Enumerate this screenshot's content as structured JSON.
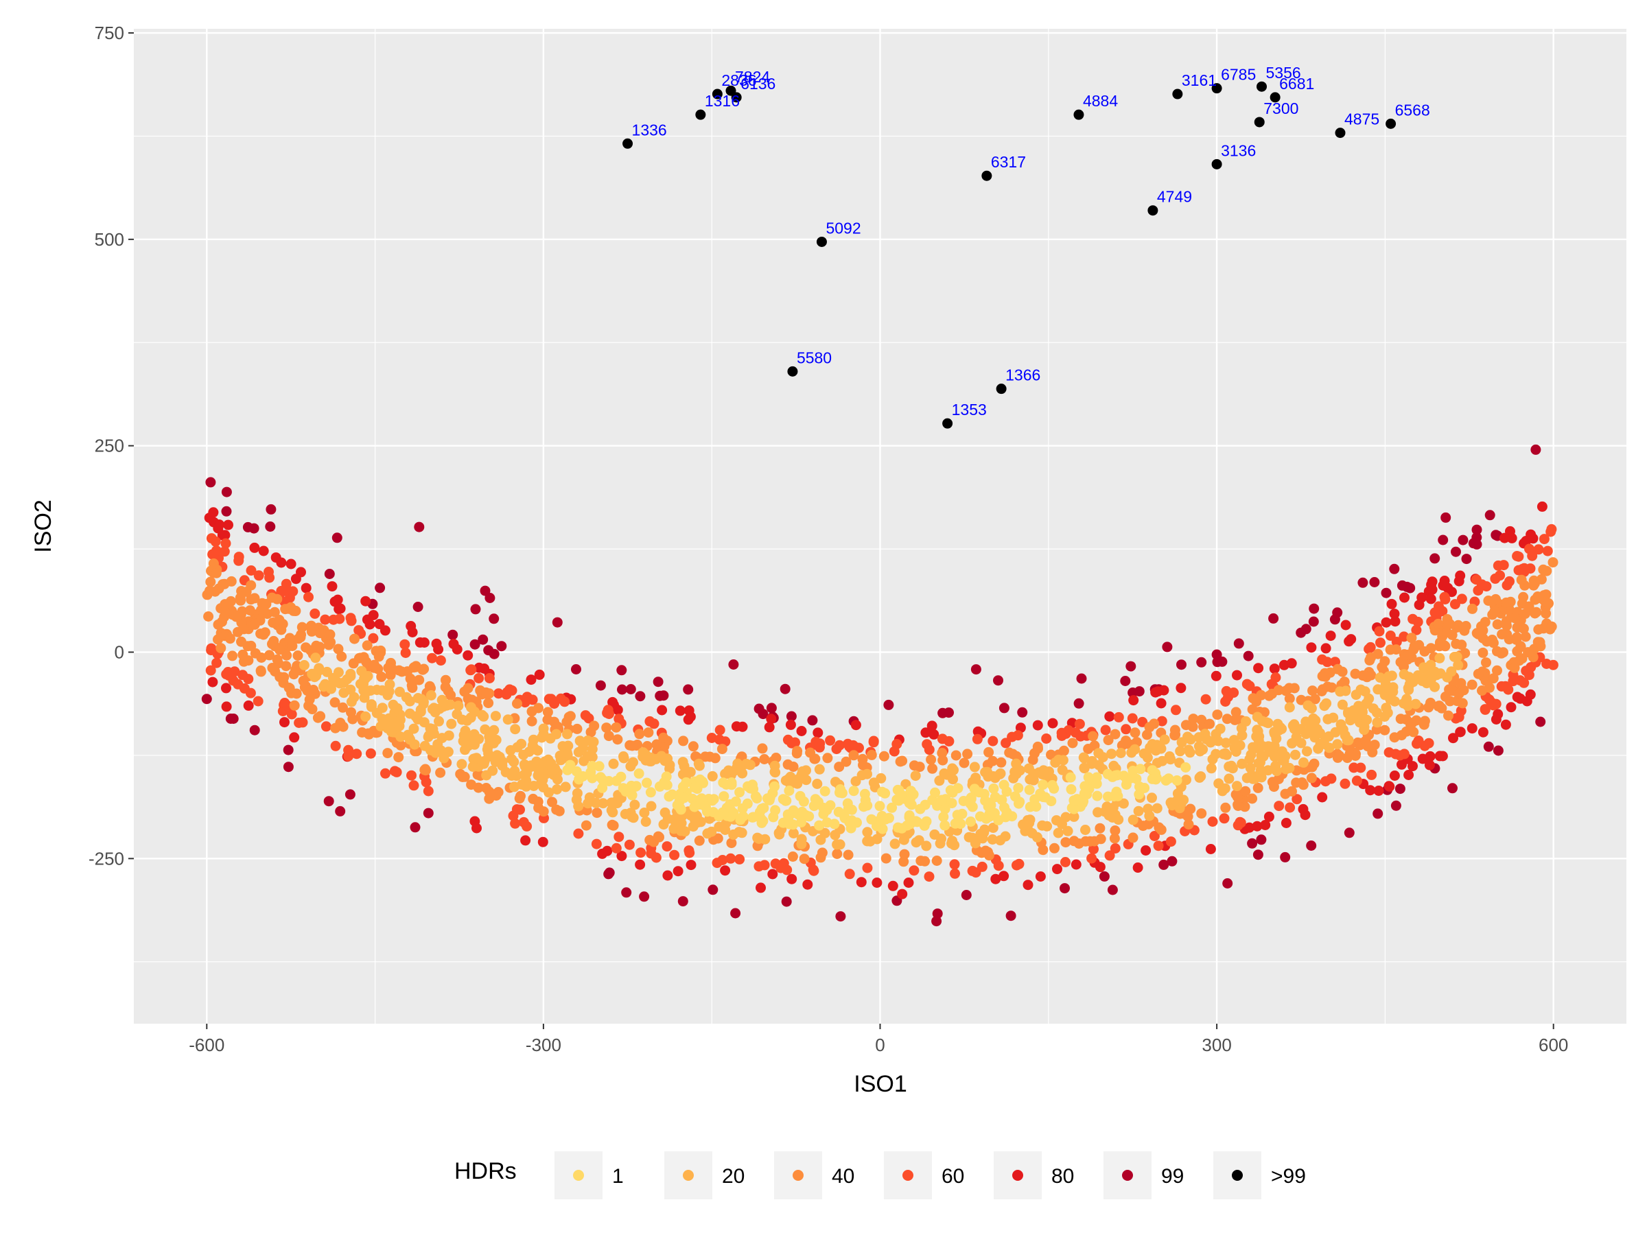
{
  "chart_data": {
    "type": "scatter",
    "xlabel": "ISO1",
    "ylabel": "ISO2",
    "xlim": [
      -665,
      665
    ],
    "ylim": [
      -450,
      755
    ],
    "x_ticks": [
      {
        "value": -600,
        "label": "-600"
      },
      {
        "value": -300,
        "label": "-300"
      },
      {
        "value": 0,
        "label": "0"
      },
      {
        "value": 300,
        "label": "300"
      },
      {
        "value": 600,
        "label": "600"
      }
    ],
    "y_ticks": [
      {
        "value": -250,
        "label": "-250"
      },
      {
        "value": 0,
        "label": "0"
      },
      {
        "value": 250,
        "label": "250"
      },
      {
        "value": 500,
        "label": "500"
      },
      {
        "value": 750,
        "label": "750"
      }
    ],
    "grid": true,
    "legend": {
      "title": "HDRs",
      "position": "bottom",
      "entries": [
        {
          "label": "1",
          "color": "#ffd967"
        },
        {
          "label": "20",
          "color": "#feb24c"
        },
        {
          "label": "40",
          "color": "#fd8d3c"
        },
        {
          "label": "60",
          "color": "#fc4e2a"
        },
        {
          "label": "80",
          "color": "#e31a1c"
        },
        {
          "label": "99",
          "color": "#b10026"
        },
        {
          "label": ">99",
          "color": "#000000"
        }
      ]
    },
    "distribution": {
      "shape": "crescent",
      "center": [
        0,
        710
      ],
      "radius_range": [
        800,
        1000
      ]
    },
    "outliers": [
      {
        "label": "2836",
        "x": -145,
        "y": 676
      },
      {
        "label": "7824",
        "x": -133,
        "y": 680
      },
      {
        "label": "6136",
        "x": -128,
        "y": 672
      },
      {
        "label": "1316",
        "x": -160,
        "y": 651
      },
      {
        "label": "1336",
        "x": -225,
        "y": 616
      },
      {
        "label": "5092",
        "x": -52,
        "y": 497
      },
      {
        "label": "5580",
        "x": -78,
        "y": 340
      },
      {
        "label": "1353",
        "x": 60,
        "y": 277
      },
      {
        "label": "1366",
        "x": 108,
        "y": 319
      },
      {
        "label": "6317",
        "x": 95,
        "y": 577
      },
      {
        "label": "4884",
        "x": 177,
        "y": 651
      },
      {
        "label": "4749",
        "x": 243,
        "y": 535
      },
      {
        "label": "3161",
        "x": 265,
        "y": 676
      },
      {
        "label": "6785",
        "x": 300,
        "y": 683
      },
      {
        "label": "5356",
        "x": 340,
        "y": 685
      },
      {
        "label": "6681",
        "x": 352,
        "y": 672
      },
      {
        "label": "7300",
        "x": 338,
        "y": 642
      },
      {
        "label": "3136",
        "x": 300,
        "y": 591
      },
      {
        "label": "4875",
        "x": 410,
        "y": 629
      },
      {
        "label": "6568",
        "x": 455,
        "y": 640
      }
    ]
  }
}
